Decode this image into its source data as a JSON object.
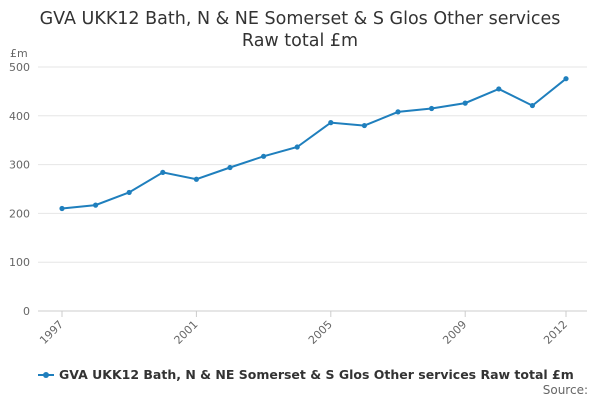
{
  "title_line1": "GVA UKK12 Bath, N & NE Somerset & S Glos Other services",
  "title_line2": "Raw total £m",
  "unit_label": "£m",
  "source_label": "Source:",
  "legend_label": "GVA UKK12 Bath, N & NE Somerset & S Glos Other services Raw total £m",
  "chart_data": {
    "type": "line",
    "title": "GVA UKK12 Bath, N & NE Somerset & S Glos Other services Raw total £m",
    "ylabel": "£m",
    "xlabel": "",
    "ylim": [
      0,
      500
    ],
    "yticks": [
      0,
      100,
      200,
      300,
      400,
      500
    ],
    "xlim": [
      1997,
      2012
    ],
    "xticks": [
      1997,
      2001,
      2005,
      2009,
      2012
    ],
    "grid": true,
    "legend": "bottom",
    "color": "#1f7fbd",
    "series": [
      {
        "name": "GVA UKK12 Bath, N & NE Somerset & S Glos Other services Raw total £m",
        "x": [
          1997,
          1998,
          1999,
          2000,
          2001,
          2002,
          2003,
          2004,
          2005,
          2006,
          2007,
          2008,
          2009,
          2010,
          2011,
          2012
        ],
        "values": [
          210,
          217,
          243,
          284,
          270,
          294,
          317,
          336,
          386,
          380,
          408,
          415,
          426,
          455,
          421,
          476
        ]
      }
    ]
  }
}
